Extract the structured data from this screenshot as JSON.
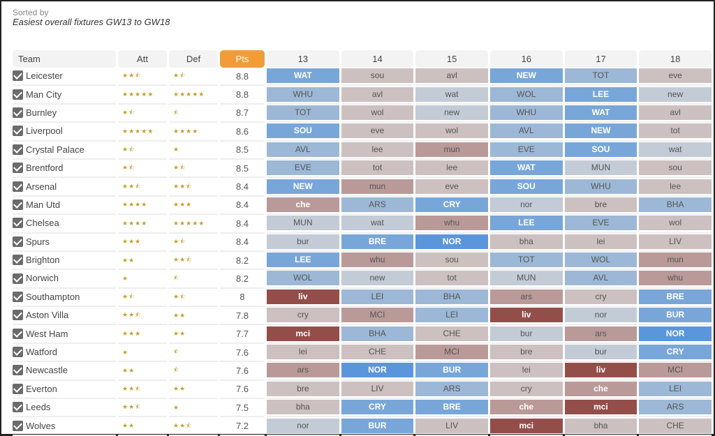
{
  "header": {
    "sorted_label": "Sorted by",
    "sort_title": "Easiest overall fixtures GW13 to GW18"
  },
  "columns": {
    "team": "Team",
    "att": "Att",
    "def": "Def",
    "pts": "Pts",
    "gws": [
      "13",
      "14",
      "15",
      "16",
      "17",
      "18"
    ]
  },
  "difficulty_colors": {
    "1": "#5b96dc",
    "2": "#79a6d8",
    "3": "#9cb8d6",
    "4": "#c3cbd6",
    "5": "#ccc0c0",
    "6": "#b99a99",
    "7": "#b99a99",
    "8": "#944e4a"
  },
  "rows": [
    {
      "team": "Leicester",
      "att": 2.5,
      "def": 1.5,
      "pts": "8.8",
      "fixtures": [
        [
          "WAT",
          2
        ],
        [
          "sou",
          5
        ],
        [
          "avl",
          5
        ],
        [
          "NEW",
          2
        ],
        [
          "TOT",
          3
        ],
        [
          "eve",
          5
        ]
      ]
    },
    {
      "team": "Man City",
      "att": 5,
      "def": 5,
      "pts": "8.8",
      "fixtures": [
        [
          "WHU",
          3
        ],
        [
          "avl",
          5
        ],
        [
          "wat",
          4
        ],
        [
          "WOL",
          3
        ],
        [
          "LEE",
          2
        ],
        [
          "new",
          4
        ]
      ]
    },
    {
      "team": "Burnley",
      "att": 1.5,
      "def": 0.5,
      "pts": "8.7",
      "fixtures": [
        [
          "TOT",
          3
        ],
        [
          "wol",
          5
        ],
        [
          "new",
          4
        ],
        [
          "WHU",
          3
        ],
        [
          "WAT",
          2
        ],
        [
          "avl",
          5
        ]
      ]
    },
    {
      "team": "Liverpool",
      "att": 5,
      "def": 4,
      "pts": "8.6",
      "fixtures": [
        [
          "SOU",
          2
        ],
        [
          "eve",
          5
        ],
        [
          "wol",
          5
        ],
        [
          "AVL",
          3
        ],
        [
          "NEW",
          2
        ],
        [
          "tot",
          5
        ]
      ]
    },
    {
      "team": "Crystal Palace",
      "att": 1.5,
      "def": 1,
      "pts": "8.5",
      "fixtures": [
        [
          "AVL",
          3
        ],
        [
          "lee",
          5
        ],
        [
          "mun",
          6
        ],
        [
          "EVE",
          3
        ],
        [
          "SOU",
          2
        ],
        [
          "wat",
          4
        ]
      ]
    },
    {
      "team": "Brentford",
      "att": 1.5,
      "def": 1.5,
      "pts": "8.5",
      "fixtures": [
        [
          "EVE",
          3
        ],
        [
          "tot",
          5
        ],
        [
          "lee",
          5
        ],
        [
          "WAT",
          2
        ],
        [
          "MUN",
          4
        ],
        [
          "sou",
          5
        ]
      ]
    },
    {
      "team": "Arsenal",
      "att": 2.5,
      "def": 2.5,
      "pts": "8.4",
      "fixtures": [
        [
          "NEW",
          2
        ],
        [
          "mun",
          6
        ],
        [
          "eve",
          5
        ],
        [
          "SOU",
          2
        ],
        [
          "WHU",
          3
        ],
        [
          "lee",
          5
        ]
      ]
    },
    {
      "team": "Man Utd",
      "att": 4,
      "def": 3,
      "pts": "8.4",
      "fixtures": [
        [
          "che",
          7
        ],
        [
          "ARS",
          3
        ],
        [
          "CRY",
          2
        ],
        [
          "nor",
          4
        ],
        [
          "bre",
          5
        ],
        [
          "BHA",
          3
        ]
      ]
    },
    {
      "team": "Chelsea",
      "att": 4,
      "def": 5,
      "pts": "8.4",
      "fixtures": [
        [
          "MUN",
          4
        ],
        [
          "wat",
          4
        ],
        [
          "whu",
          6
        ],
        [
          "LEE",
          2
        ],
        [
          "EVE",
          3
        ],
        [
          "wol",
          5
        ]
      ]
    },
    {
      "team": "Spurs",
      "att": 3,
      "def": 1.5,
      "pts": "8.4",
      "fixtures": [
        [
          "bur",
          4
        ],
        [
          "BRE",
          2
        ],
        [
          "NOR",
          1
        ],
        [
          "bha",
          5
        ],
        [
          "lei",
          5
        ],
        [
          "LIV",
          5
        ]
      ]
    },
    {
      "team": "Brighton",
      "att": 2,
      "def": 2.5,
      "pts": "8.2",
      "fixtures": [
        [
          "LEE",
          2
        ],
        [
          "whu",
          6
        ],
        [
          "sou",
          5
        ],
        [
          "TOT",
          3
        ],
        [
          "WOL",
          3
        ],
        [
          "mun",
          6
        ]
      ]
    },
    {
      "team": "Norwich",
      "att": 1,
      "def": 0.5,
      "pts": "8.2",
      "fixtures": [
        [
          "WOL",
          3
        ],
        [
          "new",
          4
        ],
        [
          "tot",
          5
        ],
        [
          "MUN",
          4
        ],
        [
          "AVL",
          3
        ],
        [
          "whu",
          6
        ]
      ]
    },
    {
      "team": "Southampton",
      "att": 1.5,
      "def": 1.5,
      "pts": "8",
      "fixtures": [
        [
          "liv",
          8
        ],
        [
          "LEI",
          3
        ],
        [
          "BHA",
          3
        ],
        [
          "ars",
          6
        ],
        [
          "cry",
          5
        ],
        [
          "BRE",
          2
        ]
      ]
    },
    {
      "team": "Aston Villa",
      "att": 2.5,
      "def": 2,
      "pts": "7.8",
      "fixtures": [
        [
          "cry",
          5
        ],
        [
          "MCI",
          6
        ],
        [
          "LEI",
          3
        ],
        [
          "liv",
          8
        ],
        [
          "nor",
          4
        ],
        [
          "BUR",
          2
        ]
      ]
    },
    {
      "team": "West Ham",
      "att": 3,
      "def": 2,
      "pts": "7.7",
      "fixtures": [
        [
          "mci",
          8
        ],
        [
          "BHA",
          3
        ],
        [
          "CHE",
          5
        ],
        [
          "bur",
          4
        ],
        [
          "ars",
          6
        ],
        [
          "NOR",
          1
        ]
      ]
    },
    {
      "team": "Watford",
      "att": 1,
      "def": 0.5,
      "pts": "7.6",
      "fixtures": [
        [
          "lei",
          5
        ],
        [
          "CHE",
          5
        ],
        [
          "MCI",
          6
        ],
        [
          "bre",
          5
        ],
        [
          "bur",
          4
        ],
        [
          "CRY",
          2
        ]
      ]
    },
    {
      "team": "Newcastle",
      "att": 2,
      "def": 0.5,
      "pts": "7.6",
      "fixtures": [
        [
          "ars",
          6
        ],
        [
          "NOR",
          1
        ],
        [
          "BUR",
          2
        ],
        [
          "lei",
          5
        ],
        [
          "liv",
          8
        ],
        [
          "MCI",
          6
        ]
      ]
    },
    {
      "team": "Everton",
      "att": 2.5,
      "def": 2,
      "pts": "7.6",
      "fixtures": [
        [
          "bre",
          5
        ],
        [
          "LIV",
          5
        ],
        [
          "ARS",
          3
        ],
        [
          "cry",
          5
        ],
        [
          "che",
          7
        ],
        [
          "LEI",
          3
        ]
      ]
    },
    {
      "team": "Leeds",
      "att": 2.5,
      "def": 1,
      "pts": "7.5",
      "fixtures": [
        [
          "bha",
          5
        ],
        [
          "CRY",
          2
        ],
        [
          "BRE",
          2
        ],
        [
          "che",
          7
        ],
        [
          "mci",
          8
        ],
        [
          "ARS",
          3
        ]
      ]
    },
    {
      "team": "Wolves",
      "att": 2,
      "def": 2.5,
      "pts": "7.2",
      "fixtures": [
        [
          "nor",
          4
        ],
        [
          "BUR",
          2
        ],
        [
          "LIV",
          5
        ],
        [
          "mci",
          8
        ],
        [
          "bha",
          5
        ],
        [
          "CHE",
          5
        ]
      ]
    }
  ]
}
